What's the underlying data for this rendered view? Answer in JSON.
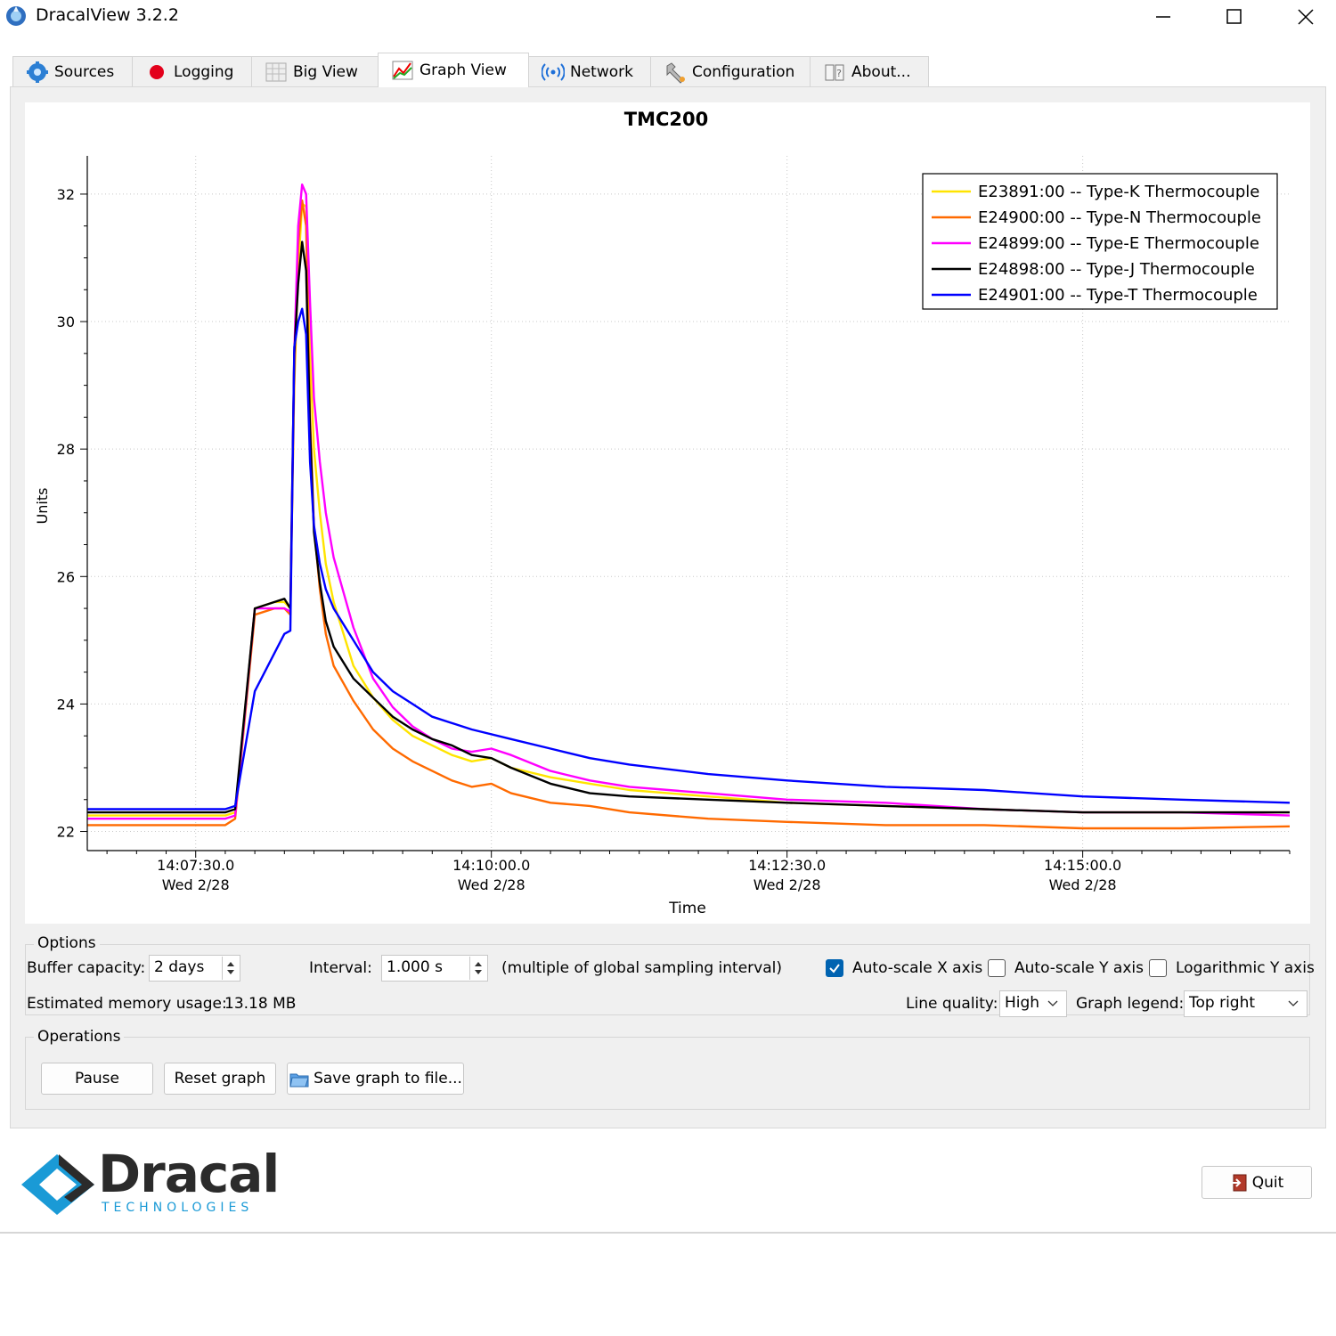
{
  "window": {
    "title": "DracalView 3.2.2"
  },
  "tabs": [
    {
      "label": "Sources",
      "icon": "gear-icon"
    },
    {
      "label": "Logging",
      "icon": "record-icon"
    },
    {
      "label": "Big View",
      "icon": "grid-icon"
    },
    {
      "label": "Graph View",
      "icon": "graph-icon",
      "active": true
    },
    {
      "label": "Network",
      "icon": "wireless-icon"
    },
    {
      "label": "Configuration",
      "icon": "wrench-icon"
    },
    {
      "label": "About...",
      "icon": "help-book-icon"
    }
  ],
  "chart_data": {
    "type": "line",
    "title": "TMC200",
    "xlabel": "Time",
    "ylabel": "Units",
    "ylim": [
      21.7,
      32.6
    ],
    "yticks": [
      22,
      24,
      26,
      28,
      30,
      32
    ],
    "xticks": [
      {
        "time": "14:07:30.0",
        "day": "Wed 2/28"
      },
      {
        "time": "14:10:00.0",
        "day": "Wed 2/28"
      },
      {
        "time": "14:12:30.0",
        "day": "Wed 2/28"
      },
      {
        "time": "14:15:00.0",
        "day": "Wed 2/28"
      }
    ],
    "x_units": "seconds since 14:07:30.0",
    "xlim": [
      -55,
      555
    ],
    "legend_position": "top-right",
    "grid": true,
    "series": [
      {
        "name": "E23891:00 -- Type-K Thermocouple",
        "color": "#ffe400",
        "points": [
          [
            -55,
            22.25
          ],
          [
            15,
            22.25
          ],
          [
            20,
            22.3
          ],
          [
            30,
            25.5
          ],
          [
            40,
            25.6
          ],
          [
            45,
            25.6
          ],
          [
            48,
            25.5
          ],
          [
            50,
            29
          ],
          [
            52,
            30.8
          ],
          [
            54,
            31.85
          ],
          [
            56,
            31.8
          ],
          [
            58,
            29.5
          ],
          [
            60,
            28
          ],
          [
            63,
            27
          ],
          [
            66,
            26.2
          ],
          [
            70,
            25.6
          ],
          [
            80,
            24.6
          ],
          [
            90,
            24.1
          ],
          [
            100,
            23.75
          ],
          [
            110,
            23.5
          ],
          [
            120,
            23.35
          ],
          [
            130,
            23.2
          ],
          [
            140,
            23.1
          ],
          [
            150,
            23.15
          ],
          [
            160,
            23
          ],
          [
            180,
            22.85
          ],
          [
            200,
            22.75
          ],
          [
            220,
            22.65
          ],
          [
            260,
            22.55
          ],
          [
            300,
            22.45
          ],
          [
            350,
            22.4
          ],
          [
            400,
            22.35
          ],
          [
            450,
            22.3
          ],
          [
            500,
            22.3
          ],
          [
            555,
            22.3
          ]
        ]
      },
      {
        "name": "E24900:00 -- Type-N Thermocouple",
        "color": "#ff6a00",
        "points": [
          [
            -55,
            22.1
          ],
          [
            15,
            22.1
          ],
          [
            20,
            22.2
          ],
          [
            30,
            25.4
          ],
          [
            40,
            25.5
          ],
          [
            45,
            25.5
          ],
          [
            48,
            25.4
          ],
          [
            50,
            29.2
          ],
          [
            52,
            31.2
          ],
          [
            54,
            31.9
          ],
          [
            56,
            31.5
          ],
          [
            58,
            28.5
          ],
          [
            60,
            26.8
          ],
          [
            63,
            25.8
          ],
          [
            66,
            25.1
          ],
          [
            70,
            24.6
          ],
          [
            80,
            24.05
          ],
          [
            90,
            23.6
          ],
          [
            100,
            23.3
          ],
          [
            110,
            23.1
          ],
          [
            120,
            22.95
          ],
          [
            130,
            22.8
          ],
          [
            140,
            22.7
          ],
          [
            150,
            22.75
          ],
          [
            160,
            22.6
          ],
          [
            180,
            22.45
          ],
          [
            200,
            22.4
          ],
          [
            220,
            22.3
          ],
          [
            260,
            22.2
          ],
          [
            300,
            22.15
          ],
          [
            350,
            22.1
          ],
          [
            400,
            22.1
          ],
          [
            450,
            22.05
          ],
          [
            500,
            22.05
          ],
          [
            555,
            22.08
          ]
        ]
      },
      {
        "name": "E24899:00 -- Type-E Thermocouple",
        "color": "#ff00ff",
        "points": [
          [
            -55,
            22.2
          ],
          [
            15,
            22.2
          ],
          [
            20,
            22.25
          ],
          [
            30,
            25.5
          ],
          [
            40,
            25.5
          ],
          [
            45,
            25.5
          ],
          [
            48,
            25.45
          ],
          [
            50,
            29.5
          ],
          [
            52,
            31.5
          ],
          [
            54,
            32.15
          ],
          [
            56,
            32
          ],
          [
            58,
            30.3
          ],
          [
            60,
            28.8
          ],
          [
            63,
            27.8
          ],
          [
            66,
            27
          ],
          [
            70,
            26.3
          ],
          [
            80,
            25.2
          ],
          [
            90,
            24.4
          ],
          [
            100,
            23.95
          ],
          [
            110,
            23.65
          ],
          [
            120,
            23.45
          ],
          [
            130,
            23.3
          ],
          [
            140,
            23.25
          ],
          [
            150,
            23.3
          ],
          [
            160,
            23.2
          ],
          [
            180,
            22.95
          ],
          [
            200,
            22.8
          ],
          [
            220,
            22.7
          ],
          [
            260,
            22.6
          ],
          [
            300,
            22.5
          ],
          [
            350,
            22.45
          ],
          [
            400,
            22.35
          ],
          [
            450,
            22.3
          ],
          [
            500,
            22.3
          ],
          [
            555,
            22.25
          ]
        ]
      },
      {
        "name": "E24898:00 -- Type-J Thermocouple",
        "color": "#000000",
        "points": [
          [
            -55,
            22.3
          ],
          [
            15,
            22.3
          ],
          [
            20,
            22.35
          ],
          [
            30,
            25.5
          ],
          [
            40,
            25.6
          ],
          [
            45,
            25.65
          ],
          [
            48,
            25.5
          ],
          [
            50,
            29.5
          ],
          [
            52,
            30.6
          ],
          [
            54,
            31.25
          ],
          [
            56,
            30.8
          ],
          [
            58,
            28.3
          ],
          [
            60,
            26.7
          ],
          [
            63,
            25.9
          ],
          [
            66,
            25.3
          ],
          [
            70,
            24.9
          ],
          [
            80,
            24.4
          ],
          [
            90,
            24.1
          ],
          [
            100,
            23.8
          ],
          [
            110,
            23.6
          ],
          [
            120,
            23.45
          ],
          [
            130,
            23.35
          ],
          [
            140,
            23.2
          ],
          [
            150,
            23.15
          ],
          [
            160,
            23
          ],
          [
            180,
            22.75
          ],
          [
            200,
            22.6
          ],
          [
            220,
            22.55
          ],
          [
            260,
            22.5
          ],
          [
            300,
            22.45
          ],
          [
            350,
            22.4
          ],
          [
            400,
            22.35
          ],
          [
            450,
            22.3
          ],
          [
            500,
            22.3
          ],
          [
            555,
            22.3
          ]
        ]
      },
      {
        "name": "E24901:00 -- Type-T Thermocouple",
        "color": "#0000ff",
        "points": [
          [
            -55,
            22.35
          ],
          [
            15,
            22.35
          ],
          [
            20,
            22.4
          ],
          [
            30,
            24.2
          ],
          [
            40,
            24.8
          ],
          [
            45,
            25.1
          ],
          [
            48,
            25.15
          ],
          [
            50,
            29.6
          ],
          [
            52,
            30
          ],
          [
            54,
            30.2
          ],
          [
            56,
            29.8
          ],
          [
            58,
            27.8
          ],
          [
            60,
            26.8
          ],
          [
            63,
            26.2
          ],
          [
            66,
            25.8
          ],
          [
            70,
            25.5
          ],
          [
            80,
            25
          ],
          [
            90,
            24.5
          ],
          [
            100,
            24.2
          ],
          [
            110,
            24
          ],
          [
            120,
            23.8
          ],
          [
            140,
            23.6
          ],
          [
            160,
            23.45
          ],
          [
            180,
            23.3
          ],
          [
            200,
            23.15
          ],
          [
            220,
            23.05
          ],
          [
            260,
            22.9
          ],
          [
            300,
            22.8
          ],
          [
            350,
            22.7
          ],
          [
            400,
            22.65
          ],
          [
            450,
            22.55
          ],
          [
            500,
            22.5
          ],
          [
            555,
            22.45
          ]
        ]
      }
    ]
  },
  "options": {
    "title": "Options",
    "buffer_label": "Buffer capacity:",
    "buffer_value": "2 days",
    "interval_label": "Interval:",
    "interval_value": "1.000 s",
    "interval_note": "(multiple of global sampling interval)",
    "autoscale_x_label": "Auto-scale X axis",
    "autoscale_x_checked": true,
    "autoscale_y_label": "Auto-scale Y axis",
    "autoscale_y_checked": false,
    "log_y_label": "Logarithmic Y axis",
    "log_y_checked": false,
    "memory_label": "Estimated memory usage:",
    "memory_value": "13.18 MB",
    "line_quality_label": "Line quality:",
    "line_quality_value": "High",
    "legend_label": "Graph legend:",
    "legend_value": "Top right"
  },
  "operations": {
    "title": "Operations",
    "pause_label": "Pause",
    "reset_label": "Reset graph",
    "save_label": "Save graph to file..."
  },
  "footer": {
    "logo_name": "Dracal",
    "logo_sub": "TECHNOLOGIES",
    "quit_label": "Quit"
  },
  "colors": {
    "accent": "#0063b1",
    "logo_blue": "#1a9ad6",
    "logo_dark": "#2b2b2b"
  }
}
